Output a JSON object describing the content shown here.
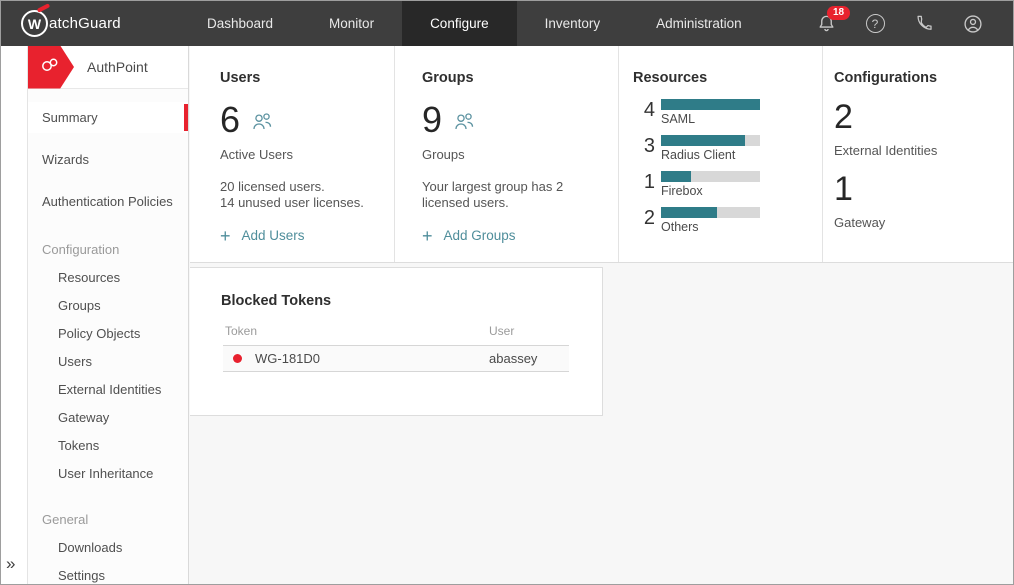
{
  "topbar": {
    "logo_letter": "W",
    "brand_rest": "atchGuard",
    "nav": [
      {
        "label": "Dashboard"
      },
      {
        "label": "Monitor"
      },
      {
        "label": "Configure"
      },
      {
        "label": "Inventory"
      },
      {
        "label": "Administration"
      }
    ],
    "active_nav": "Configure",
    "notification_badge": "18",
    "help_glyph": "?"
  },
  "sidebar": {
    "product": "AuthPoint",
    "collapse_glyph": "»",
    "items": [
      {
        "label": "Summary"
      },
      {
        "label": "Wizards"
      },
      {
        "label": "Authentication Policies"
      },
      {
        "label": "Configuration"
      },
      {
        "label": "Resources"
      },
      {
        "label": "Groups"
      },
      {
        "label": "Policy Objects"
      },
      {
        "label": "Users"
      },
      {
        "label": "External Identities"
      },
      {
        "label": "Gateway"
      },
      {
        "label": "Tokens"
      },
      {
        "label": "User Inheritance"
      },
      {
        "label": "General"
      },
      {
        "label": "Downloads"
      },
      {
        "label": "Settings"
      }
    ],
    "active_item": "Summary"
  },
  "main": {
    "users_card": {
      "title": "Users",
      "count": "6",
      "count_label": "Active Users",
      "line1": "20 licensed users.",
      "line2": "14 unused user licenses.",
      "add_icon": "+",
      "action": "Add Users"
    },
    "groups_card": {
      "title": "Groups",
      "count": "9",
      "count_label": "Groups",
      "desc": "Your largest group has 2 licensed users.",
      "add_icon": "+",
      "action": "Add Groups"
    },
    "resources_card": {
      "title": "Resources",
      "items": [
        {
          "count": "4",
          "label": "SAML",
          "fill_pct": "100"
        },
        {
          "count": "3",
          "label": "Radius Client",
          "fill_pct": "85"
        },
        {
          "count": "1",
          "label": "Firebox",
          "fill_pct": "30"
        },
        {
          "count": "2",
          "label": "Others",
          "fill_pct": "57"
        }
      ]
    },
    "configurations_card": {
      "title": "Configurations",
      "stats": [
        {
          "value": "2",
          "label": "External Identities"
        },
        {
          "value": "1",
          "label": "Gateway"
        }
      ]
    },
    "blocked_tokens": {
      "title": "Blocked Tokens",
      "columns": {
        "token": "Token",
        "user": "User"
      },
      "rows": [
        {
          "token": "WG-181D0",
          "user": "abassey"
        }
      ]
    }
  },
  "colors": {
    "accent_red": "#e8222e",
    "teal_bar": "#2f7c88",
    "teal_link": "#4f8e9b",
    "topbar_bg": "#3e3e3e",
    "bar_track": "#d8d8d8",
    "blocked_dot": "#e8212e"
  }
}
